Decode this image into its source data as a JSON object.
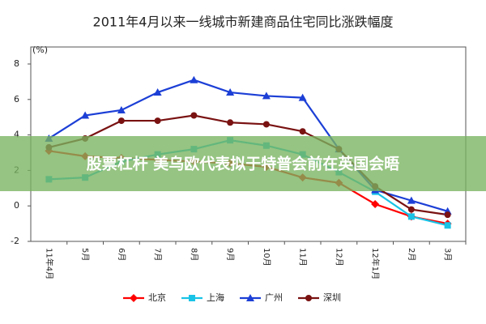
{
  "chart_data": {
    "type": "line",
    "title": "2011年4月以来一线城市新建商品住宅同比涨跌幅度",
    "y_unit": "(%)",
    "overlay_text": "股票杠杆 美乌欧代表拟于特普会前在英国会晤",
    "categories": [
      "11年4月",
      "5月",
      "6月",
      "7月",
      "8月",
      "9月",
      "10月",
      "11月",
      "12月",
      "12年1月",
      "2月",
      "3月"
    ],
    "series": [
      {
        "name": "北京",
        "color": "#ff0000",
        "marker": "diamond",
        "values": [
          3.1,
          2.8,
          2.7,
          2.6,
          2.5,
          2.4,
          2.2,
          1.6,
          1.3,
          0.1,
          -0.6,
          -1.0
        ]
      },
      {
        "name": "上海",
        "color": "#19c3e6",
        "marker": "square",
        "values": [
          1.5,
          1.6,
          2.5,
          2.9,
          3.2,
          3.7,
          3.4,
          2.9,
          1.9,
          0.8,
          -0.6,
          -1.1
        ]
      },
      {
        "name": "广州",
        "color": "#1c3fd6",
        "marker": "triangle",
        "values": [
          3.8,
          5.1,
          5.4,
          6.4,
          7.1,
          6.4,
          6.2,
          6.1,
          3.2,
          0.9,
          0.3,
          -0.3
        ]
      },
      {
        "name": "深圳",
        "color": "#7a1212",
        "marker": "circle",
        "values": [
          3.3,
          3.8,
          4.8,
          4.8,
          5.1,
          4.7,
          4.6,
          4.2,
          3.2,
          1.1,
          -0.2,
          -0.5
        ]
      }
    ],
    "ylim": [
      -2,
      8
    ],
    "yticks": [
      -2,
      0,
      2,
      4,
      6,
      8
    ],
    "grid": false,
    "legend": "bottom"
  }
}
